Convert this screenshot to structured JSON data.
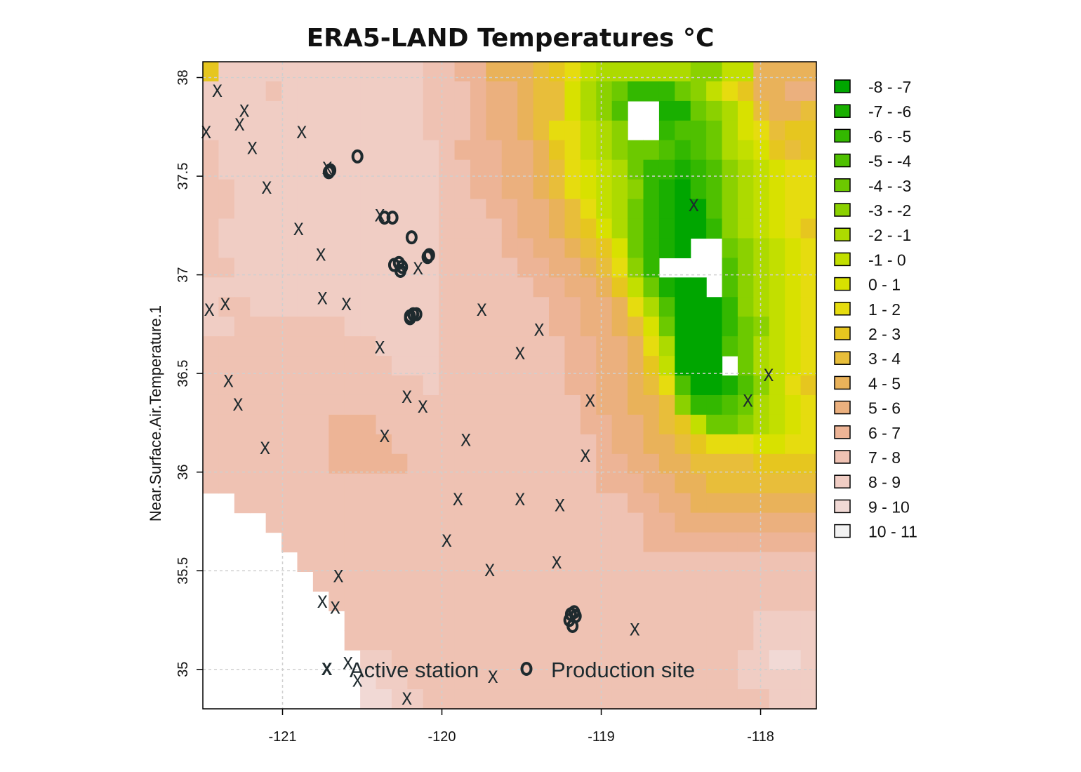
{
  "chart_data": {
    "type": "heatmap",
    "title": "ERA5-LAND Temperatures °C",
    "xlabel": "",
    "ylabel": "Near.Surface.Air.Temperature.1",
    "xlim": [
      -121.5,
      -117.65
    ],
    "ylim": [
      34.8,
      38.08
    ],
    "x_ticks": [
      {
        "value": -121,
        "label": "-121"
      },
      {
        "value": -120,
        "label": "-120"
      },
      {
        "value": -119,
        "label": "-119"
      },
      {
        "value": -118,
        "label": "-118"
      }
    ],
    "y_ticks": [
      {
        "value": 35,
        "label": "35"
      },
      {
        "value": 35.5,
        "label": "35.5"
      },
      {
        "value": 36,
        "label": "36"
      },
      {
        "value": 36.5,
        "label": "36.5"
      },
      {
        "value": 37,
        "label": "37"
      },
      {
        "value": 37.5,
        "label": "37.5"
      },
      {
        "value": 38,
        "label": "38"
      }
    ],
    "grid": true,
    "legend": {
      "position": "right",
      "bins": [
        {
          "label": "-8 - -7",
          "color": "#00A600"
        },
        {
          "label": "-7 - -6",
          "color": "#19AF00"
        },
        {
          "label": "-6 - -5",
          "color": "#33B800"
        },
        {
          "label": "-5 - -4",
          "color": "#4FC000"
        },
        {
          "label": "-4 - -3",
          "color": "#6CC900"
        },
        {
          "label": "-3 - -2",
          "color": "#8BD100"
        },
        {
          "label": "-2 - -1",
          "color": "#ADDA00"
        },
        {
          "label": "-1 - 0",
          "color": "#C2DF00"
        },
        {
          "label": "0 - 1",
          "color": "#D8E100"
        },
        {
          "label": "1 - 2",
          "color": "#E6DC0F"
        },
        {
          "label": "2 - 3",
          "color": "#E6C61F"
        },
        {
          "label": "3 - 4",
          "color": "#E8BE3A"
        },
        {
          "label": "4 - 5",
          "color": "#E9B25A"
        },
        {
          "label": "5 - 6",
          "color": "#EBB07E"
        },
        {
          "label": "6 - 7",
          "color": "#EDB496"
        },
        {
          "label": "7 - 8",
          "color": "#EFC2B3"
        },
        {
          "label": "8 - 9",
          "color": "#F0CDC4"
        },
        {
          "label": "9 - 10",
          "color": "#F1D9D5"
        },
        {
          "label": "10 - 11",
          "color": "#F2F2F2"
        }
      ]
    },
    "raster": {
      "lon_min": -121.5,
      "lon_max": -117.65,
      "lat_min": 34.8,
      "lat_max": 38.08,
      "ncols": 39,
      "nrows": 33,
      "bin_index_rows": [
        "AGGGGGGGGGGGGGFFEECCCBA976666665577CCCC",
        "GGGGFGGGGGGGGGFFFEDDCBB86542224579ACCDD",
        "GGGGGGGGGGGGGGFFFEDDCBB8653__114568BCCB",
        "GGGGGGGGGGGGGGFFFEDDCB99765__2334689BAA",
        "FGGGGGGGGGGGGGGFEEEDDCA9765443234678ABA",
        "FGGGGGGGGGGGGGGFFEEDDCB9876422123567899",
        "FFGGGGGGGGGGGGGFFEEDDCB9876521023567899",
        "FFGGGGGGGGGGGGGFFFEEDDCB976421003567899",
        "FGGGGGGGGGGGGGGFFFFEDDCBA8642100256789A",
        "FGGGGGGGGGGGGGGFFFFEEDDCBA84210__456789",
        "FFGGGGGGGGGGGGGFFFFFEEDDCB952____356789",
        "GGGGGGGGGGGGGGGFFFFFFEEDDCA74100_356789",
        "GFFGGGGGGGGGGGGFFFFFFFEEDDC963000256789",
        "GGFFFFFFFGGGGGGFFFFFFFEEDDCB84000245789",
        "FFFFFFFFFFFGGGGFFFFFFFFEEDDC96000346789",
        "FFFFFFFFFFFFGGGFFFFFFFFEEDDCA7000_46789",
        "FFFFFFFFFFFFFFGFFFFFFFFEEDDCB930013579A",
        "FFFFFFFFFFFFFFFFFFFFFFFFEDDCCB522346789",
        "FFFFFFFFEEEFFFFFFFFFFFFFEEDDCBA74456789",
        "FFFFFFFFEEEEFFFFFFFFFFFFFEDDCCBA9998899",
        "FFFFFFFFEEEEEFFFFFFFFFFFFEEDDCCBBBBAAAA",
        "FFFFFFFFFFFFFFFFFFFFFFFFFEEEDDCCBBBBBBB",
        "__FFFFFFFFFFFFFFFFFFFFFFFFFEEDDCCCCCCCC",
        "____FFFFFFFFFFFFFFFFFFFFFFFFEEDDDDDDDDD",
        "_____FFFFFFFFFFFFFFFFFFFFFFFEEEEEEEEEEE",
        "______FFFFFFFFFFFFFFFFFFFFFFFFFFFFFFFFF",
        "_______FFFFFFFFFFFFFFFFFFFFFFFFFFFFFFFF",
        "________FFFFFFFFFFFFFFFFFFFFFFFFFFFFFFF",
        "_________FFFFFFFFFFFFFFFFFFFFFFFFFFGGGG",
        "_________FFFFFFFFFFFFFFFFFFFFFFFFFFGGGG",
        "__________GGFFFFFFFFFFFFFFFFFFFFFFGGHHG",
        "__________HGGFFFFFFFFFFFFFFFFFFFFFGGGGG",
        "__________HHGGFFFFFFFFFFFFFFFFFFFFFFGGG"
      ]
    },
    "series": [
      {
        "name": "Active station",
        "marker": "x",
        "points": [
          [
            -121.41,
            37.93
          ],
          [
            -121.24,
            37.83
          ],
          [
            -121.27,
            37.76
          ],
          [
            -121.48,
            37.72
          ],
          [
            -120.88,
            37.72
          ],
          [
            -121.19,
            37.64
          ],
          [
            -120.72,
            37.54
          ],
          [
            -121.1,
            37.44
          ],
          [
            -120.39,
            37.3
          ],
          [
            -120.9,
            37.23
          ],
          [
            -120.76,
            37.1
          ],
          [
            -120.26,
            37.04
          ],
          [
            -120.15,
            37.03
          ],
          [
            -121.46,
            36.82
          ],
          [
            -121.36,
            36.85
          ],
          [
            -120.75,
            36.88
          ],
          [
            -120.6,
            36.85
          ],
          [
            -119.75,
            36.82
          ],
          [
            -119.39,
            36.72
          ],
          [
            -120.39,
            36.63
          ],
          [
            -119.51,
            36.6
          ],
          [
            -121.34,
            36.46
          ],
          [
            -121.28,
            36.34
          ],
          [
            -120.22,
            36.38
          ],
          [
            -120.12,
            36.33
          ],
          [
            -119.07,
            36.36
          ],
          [
            -118.08,
            36.36
          ],
          [
            -117.95,
            36.49
          ],
          [
            -121.11,
            36.12
          ],
          [
            -120.36,
            36.18
          ],
          [
            -119.85,
            36.16
          ],
          [
            -119.1,
            36.08
          ],
          [
            -119.9,
            35.86
          ],
          [
            -119.51,
            35.86
          ],
          [
            -119.26,
            35.83
          ],
          [
            -118.42,
            37.35
          ],
          [
            -119.97,
            35.65
          ],
          [
            -120.65,
            35.47
          ],
          [
            -119.7,
            35.5
          ],
          [
            -119.28,
            35.54
          ],
          [
            -120.75,
            35.34
          ],
          [
            -120.67,
            35.31
          ],
          [
            -118.79,
            35.2
          ],
          [
            -120.72,
            35.0
          ],
          [
            -120.59,
            35.03
          ],
          [
            -120.53,
            34.94
          ],
          [
            -119.68,
            34.96
          ],
          [
            -120.22,
            34.85
          ]
        ]
      },
      {
        "name": "Production site",
        "marker": "o",
        "points": [
          [
            -120.53,
            37.6
          ],
          [
            -120.71,
            37.52
          ],
          [
            -120.7,
            37.53
          ],
          [
            -120.36,
            37.29
          ],
          [
            -120.31,
            37.29
          ],
          [
            -120.19,
            37.19
          ],
          [
            -120.3,
            37.05
          ],
          [
            -120.25,
            37.04
          ],
          [
            -120.27,
            37.06
          ],
          [
            -120.26,
            37.02
          ],
          [
            -120.09,
            37.09
          ],
          [
            -120.08,
            37.1
          ],
          [
            -120.2,
            36.79
          ],
          [
            -120.18,
            36.8
          ],
          [
            -120.16,
            36.8
          ],
          [
            -120.2,
            36.78
          ],
          [
            -119.19,
            35.28
          ],
          [
            -119.17,
            35.29
          ],
          [
            -119.2,
            35.25
          ],
          [
            -119.18,
            35.22
          ],
          [
            -119.16,
            35.27
          ]
        ]
      }
    ]
  }
}
